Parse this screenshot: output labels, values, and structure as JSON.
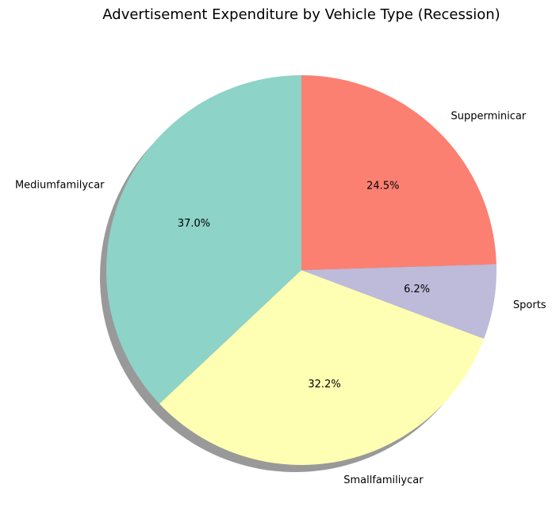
{
  "chart_data": {
    "type": "pie",
    "title": "Advertisement Expenditure by Vehicle Type (Recession)",
    "start_angle_deg": 90,
    "direction": "counterclockwise",
    "shadow": true,
    "slices": [
      {
        "label": "Mediumfamilycar",
        "value": 37.0,
        "pct_label": "37.0%",
        "color": "#8dd3c7"
      },
      {
        "label": "Smallfamiliycar",
        "value": 32.2,
        "pct_label": "32.2%",
        "color": "#ffffb3"
      },
      {
        "label": "Sports",
        "value": 6.2,
        "pct_label": "6.2%",
        "color": "#bebada"
      },
      {
        "label": "Supperminicar",
        "value": 24.5,
        "pct_label": "24.5%",
        "color": "#fb8072"
      }
    ]
  }
}
